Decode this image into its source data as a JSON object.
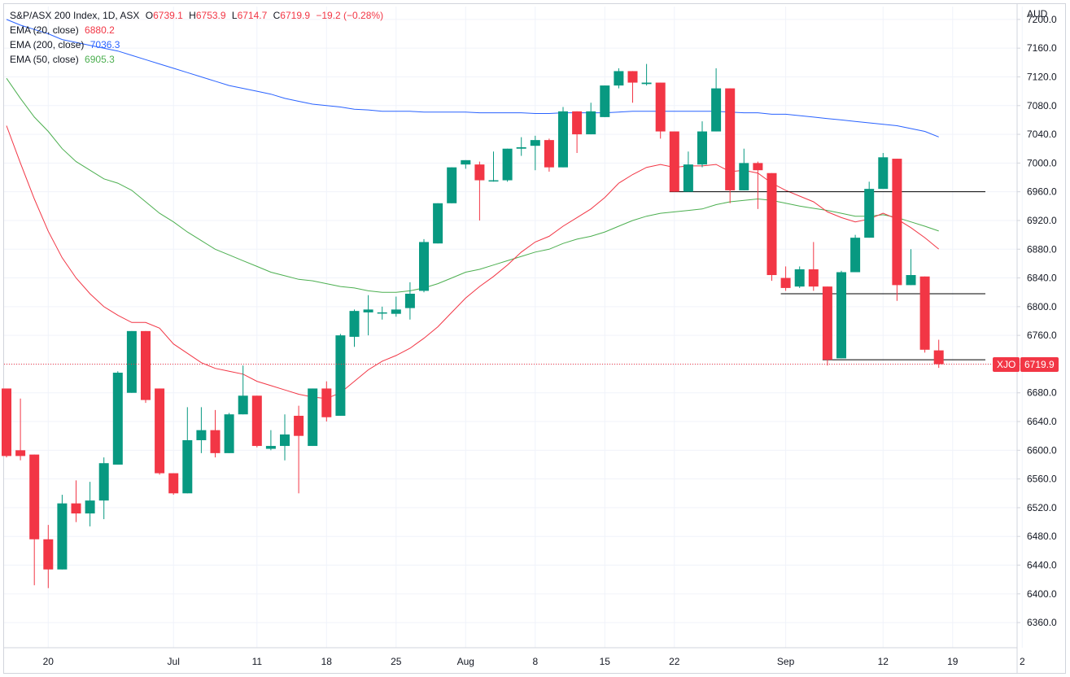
{
  "header": {
    "symbol": "S&P/ASX 200 Index, 1D, ASX",
    "open_label": "O",
    "open": "6739.1",
    "high_label": "H",
    "high": "6753.9",
    "low_label": "L",
    "low": "6714.7",
    "close_label": "C",
    "close": "6719.9",
    "change": "−19.2 (−0.28%)",
    "currency": "AUD"
  },
  "colors": {
    "up": "#089981",
    "down": "#f23645",
    "ema20": "#f23645",
    "ema50": "#4caf50",
    "ema200": "#2962ff",
    "level_lines": "#000000",
    "grid": "#f0f3fa"
  },
  "indicators": [
    {
      "id": "ema20",
      "label": "EMA (20, close)",
      "value": "6880.2",
      "color": "#f23645"
    },
    {
      "id": "ema200",
      "label": "EMA (200, close)",
      "value": "7036.3",
      "color": "#2962ff"
    },
    {
      "id": "ema50",
      "label": "EMA (50, close)",
      "value": "6905.3",
      "color": "#4caf50"
    }
  ],
  "price_tag": {
    "symbol": "XJO",
    "value": "6719.9"
  },
  "chart_data": {
    "type": "candlestick",
    "y_ticks": [
      7200,
      7160,
      7120,
      7080,
      7040,
      7000,
      6960,
      6920,
      6880,
      6840,
      6800,
      6760,
      6720,
      6680,
      6640,
      6600,
      6560,
      6520,
      6480,
      6440,
      6400,
      6360
    ],
    "y_tick_labels": [
      "7200.0",
      "7160.0",
      "7120.0",
      "7080.0",
      "7040.0",
      "7000.0",
      "6960.0",
      "6920.0",
      "6880.0",
      "6840.0",
      "6800.0",
      "6760.0",
      "6720.0",
      "6680.0",
      "6640.0",
      "6600.0",
      "6560.0",
      "6520.0",
      "6480.0",
      "6440.0",
      "6400.0",
      "6360.0"
    ],
    "ylim": [
      6325,
      7218
    ],
    "x_labels": [
      {
        "label": "20",
        "bar": 3
      },
      {
        "label": "Jul",
        "bar": 12
      },
      {
        "label": "11",
        "bar": 18
      },
      {
        "label": "18",
        "bar": 23
      },
      {
        "label": "25",
        "bar": 28
      },
      {
        "label": "Aug",
        "bar": 33
      },
      {
        "label": "8",
        "bar": 38
      },
      {
        "label": "15",
        "bar": 43
      },
      {
        "label": "22",
        "bar": 48
      },
      {
        "label": "Sep",
        "bar": 56
      },
      {
        "label": "12",
        "bar": 63
      },
      {
        "label": "19",
        "bar": 68
      },
      {
        "label": "2",
        "bar": 73
      }
    ],
    "candles": [
      {
        "o": 6686,
        "h": 6686,
        "l": 6590,
        "c": 6592
      },
      {
        "o": 6600,
        "h": 6672,
        "l": 6586,
        "c": 6592
      },
      {
        "o": 6594,
        "h": 6594,
        "l": 6412,
        "c": 6476
      },
      {
        "o": 6476,
        "h": 6496,
        "l": 6408,
        "c": 6434
      },
      {
        "o": 6434,
        "h": 6538,
        "l": 6434,
        "c": 6526
      },
      {
        "o": 6526,
        "h": 6558,
        "l": 6500,
        "c": 6512
      },
      {
        "o": 6512,
        "h": 6556,
        "l": 6494,
        "c": 6530
      },
      {
        "o": 6530,
        "h": 6590,
        "l": 6504,
        "c": 6582
      },
      {
        "o": 6580,
        "h": 6710,
        "l": 6580,
        "c": 6708
      },
      {
        "o": 6680,
        "h": 6766,
        "l": 6680,
        "c": 6766
      },
      {
        "o": 6766,
        "h": 6766,
        "l": 6666,
        "c": 6670
      },
      {
        "o": 6686,
        "h": 6686,
        "l": 6566,
        "c": 6568
      },
      {
        "o": 6568,
        "h": 6568,
        "l": 6538,
        "c": 6540
      },
      {
        "o": 6540,
        "h": 6660,
        "l": 6540,
        "c": 6614
      },
      {
        "o": 6614,
        "h": 6660,
        "l": 6596,
        "c": 6628
      },
      {
        "o": 6628,
        "h": 6656,
        "l": 6590,
        "c": 6596
      },
      {
        "o": 6596,
        "h": 6652,
        "l": 6596,
        "c": 6650
      },
      {
        "o": 6650,
        "h": 6718,
        "l": 6650,
        "c": 6676
      },
      {
        "o": 6676,
        "h": 6676,
        "l": 6604,
        "c": 6606
      },
      {
        "o": 6602,
        "h": 6628,
        "l": 6600,
        "c": 6606
      },
      {
        "o": 6606,
        "h": 6650,
        "l": 6586,
        "c": 6622
      },
      {
        "o": 6648,
        "h": 6662,
        "l": 6540,
        "c": 6620
      },
      {
        "o": 6606,
        "h": 6686,
        "l": 6606,
        "c": 6686
      },
      {
        "o": 6686,
        "h": 6696,
        "l": 6640,
        "c": 6646
      },
      {
        "o": 6648,
        "h": 6762,
        "l": 6648,
        "c": 6760
      },
      {
        "o": 6758,
        "h": 6796,
        "l": 6744,
        "c": 6794
      },
      {
        "o": 6792,
        "h": 6816,
        "l": 6760,
        "c": 6796
      },
      {
        "o": 6792,
        "h": 6800,
        "l": 6782,
        "c": 6792
      },
      {
        "o": 6790,
        "h": 6814,
        "l": 6786,
        "c": 6796
      },
      {
        "o": 6798,
        "h": 6834,
        "l": 6782,
        "c": 6818
      },
      {
        "o": 6822,
        "h": 6894,
        "l": 6820,
        "c": 6890
      },
      {
        "o": 6888,
        "h": 6944,
        "l": 6888,
        "c": 6944
      },
      {
        "o": 6944,
        "h": 6994,
        "l": 6944,
        "c": 6994
      },
      {
        "o": 6998,
        "h": 7004,
        "l": 6992,
        "c": 7004
      },
      {
        "o": 6998,
        "h": 7002,
        "l": 6920,
        "c": 6976
      },
      {
        "o": 6976,
        "h": 7016,
        "l": 6974,
        "c": 6976
      },
      {
        "o": 6976,
        "h": 7020,
        "l": 6974,
        "c": 7020
      },
      {
        "o": 7020,
        "h": 7036,
        "l": 7010,
        "c": 7022
      },
      {
        "o": 7024,
        "h": 7038,
        "l": 6990,
        "c": 7032
      },
      {
        "o": 7032,
        "h": 7034,
        "l": 6988,
        "c": 6994
      },
      {
        "o": 6994,
        "h": 7078,
        "l": 6994,
        "c": 7072
      },
      {
        "o": 7072,
        "h": 7072,
        "l": 7014,
        "c": 7040
      },
      {
        "o": 7040,
        "h": 7084,
        "l": 7040,
        "c": 7072
      },
      {
        "o": 7064,
        "h": 7108,
        "l": 7064,
        "c": 7108
      },
      {
        "o": 7108,
        "h": 7132,
        "l": 7104,
        "c": 7128
      },
      {
        "o": 7128,
        "h": 7128,
        "l": 7084,
        "c": 7112
      },
      {
        "o": 7110,
        "h": 7138,
        "l": 7108,
        "c": 7112
      },
      {
        "o": 7112,
        "h": 7112,
        "l": 7034,
        "c": 7044
      },
      {
        "o": 7044,
        "h": 7044,
        "l": 6960,
        "c": 6960
      },
      {
        "o": 6960,
        "h": 7016,
        "l": 6960,
        "c": 6998
      },
      {
        "o": 6998,
        "h": 7058,
        "l": 6994,
        "c": 7044
      },
      {
        "o": 7044,
        "h": 7132,
        "l": 7044,
        "c": 7104
      },
      {
        "o": 7104,
        "h": 7104,
        "l": 6944,
        "c": 6962
      },
      {
        "o": 6962,
        "h": 7020,
        "l": 6962,
        "c": 7000
      },
      {
        "o": 7000,
        "h": 7002,
        "l": 6936,
        "c": 6990
      },
      {
        "o": 6986,
        "h": 6986,
        "l": 6836,
        "c": 6844
      },
      {
        "o": 6840,
        "h": 6856,
        "l": 6822,
        "c": 6826
      },
      {
        "o": 6828,
        "h": 6856,
        "l": 6826,
        "c": 6852
      },
      {
        "o": 6852,
        "h": 6890,
        "l": 6822,
        "c": 6828
      },
      {
        "o": 6828,
        "h": 6828,
        "l": 6718,
        "c": 6726
      },
      {
        "o": 6728,
        "h": 6850,
        "l": 6728,
        "c": 6848
      },
      {
        "o": 6848,
        "h": 6900,
        "l": 6848,
        "c": 6896
      },
      {
        "o": 6896,
        "h": 6974,
        "l": 6896,
        "c": 6964
      },
      {
        "o": 6964,
        "h": 7014,
        "l": 6964,
        "c": 7008
      },
      {
        "o": 7006,
        "h": 7006,
        "l": 6808,
        "c": 6830
      },
      {
        "o": 6830,
        "h": 6880,
        "l": 6830,
        "c": 6844
      },
      {
        "o": 6842,
        "h": 6842,
        "l": 6736,
        "c": 6740
      },
      {
        "o": 6739.1,
        "h": 6753.9,
        "l": 6714.7,
        "c": 6719.9
      }
    ],
    "ema20": [
      7052,
      7000,
      6950,
      6905,
      6868,
      6840,
      6818,
      6800,
      6788,
      6778,
      6778,
      6770,
      6748,
      6735,
      6722,
      6714,
      6710,
      6706,
      6696,
      6690,
      6684,
      6678,
      6674,
      6672,
      6680,
      6696,
      6712,
      6724,
      6732,
      6742,
      6756,
      6772,
      6792,
      6812,
      6828,
      6842,
      6858,
      6876,
      6890,
      6898,
      6912,
      6924,
      6936,
      6952,
      6972,
      6984,
      6994,
      6998,
      6994,
      6996,
      6996,
      6998,
      6988,
      6990,
      6986,
      6972,
      6962,
      6954,
      6946,
      6932,
      6924,
      6918,
      6922,
      6930,
      6922,
      6910,
      6896,
      6880.2
    ],
    "ema50": [
      7118,
      7090,
      7064,
      7044,
      7020,
      7002,
      6990,
      6978,
      6972,
      6962,
      6946,
      6930,
      6918,
      6904,
      6892,
      6880,
      6872,
      6864,
      6856,
      6848,
      6843,
      6838,
      6836,
      6832,
      6828,
      6826,
      6822,
      6820,
      6820,
      6822,
      6826,
      6832,
      6840,
      6848,
      6852,
      6858,
      6864,
      6870,
      6876,
      6880,
      6888,
      6894,
      6898,
      6904,
      6912,
      6920,
      6926,
      6930,
      6932,
      6934,
      6936,
      6942,
      6946,
      6948,
      6950,
      6948,
      6944,
      6940,
      6937,
      6934,
      6930,
      6926,
      6926,
      6928,
      6924,
      6918,
      6912,
      6905.3
    ],
    "ema200": [
      7200,
      7192,
      7186,
      7180,
      7172,
      7168,
      7164,
      7160,
      7156,
      7150,
      7144,
      7138,
      7132,
      7126,
      7120,
      7114,
      7108,
      7104,
      7100,
      7096,
      7090,
      7086,
      7082,
      7080,
      7078,
      7075,
      7074,
      7072,
      7072,
      7072,
      7071,
      7071,
      7071,
      7071,
      7070,
      7070,
      7070,
      7070,
      7069,
      7069,
      7070,
      7070,
      7070,
      7070,
      7071,
      7072,
      7072,
      7072,
      7072,
      7072,
      7072,
      7072,
      7071,
      7070,
      7070,
      7068,
      7068,
      7066,
      7064,
      7062,
      7060,
      7058,
      7056,
      7054,
      7052,
      7048,
      7044,
      7036.3
    ],
    "levels": [
      {
        "price": 6960,
        "from_bar": 48,
        "to_bar": 70
      },
      {
        "price": 6818,
        "from_bar": 56,
        "to_bar": 70
      },
      {
        "price": 6726,
        "from_bar": 59,
        "to_bar": 70
      }
    ],
    "last_price": 6719.9
  }
}
